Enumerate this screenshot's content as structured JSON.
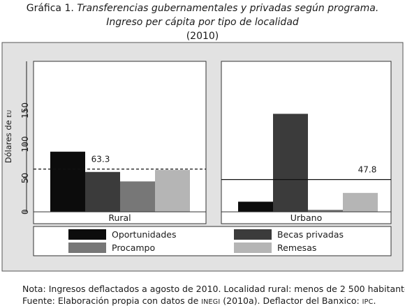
{
  "header": {
    "title_lead": "Gráfica 1.",
    "title_italic": "Transferencias gubernamentales y privadas según programa.",
    "subtitle": "Ingreso per cápita por tipo de localidad",
    "year": "(2010)"
  },
  "chart_data": {
    "type": "bar",
    "ylabel_main": "Dólares de",
    "ylabel_unit": "EU",
    "ylim": [
      0,
      160
    ],
    "yticks": [
      "0",
      "50",
      "100",
      "150"
    ],
    "ytick_values": [
      0,
      50,
      100,
      150
    ],
    "panels": [
      {
        "name": "Rural",
        "values": [
          89,
          59,
          45,
          62
        ],
        "reference_value": 63.3,
        "reference_label": "63.3",
        "reference_style": "dashed"
      },
      {
        "name": "Urbano",
        "values": [
          15,
          145,
          3,
          28
        ],
        "reference_value": 47.8,
        "reference_label": "47.8",
        "reference_style": "solid"
      }
    ],
    "series": [
      {
        "name": "Oportunidades",
        "color": "#0c0c0c"
      },
      {
        "name": "Becas privadas",
        "color": "#3b3b3b"
      },
      {
        "name": "Procampo",
        "color": "#777777"
      },
      {
        "name": "Remesas",
        "color": "#b5b5b5"
      }
    ],
    "legend_position": "bottom",
    "plot_background": "#ffffff",
    "outer_background": "#e2e2e2"
  },
  "footer": {
    "note": "Nota: Ingresos deflactados a agosto de 2010. Localidad rural: menos de 2 500 habitantes.",
    "source_part1": "Fuente: Elaboración propia con datos de ",
    "source_inegi": "INEGI",
    "source_part2": " (2010a). Deflactor del Banxico: ",
    "source_ipc": "IPC",
    "source_end": "."
  }
}
